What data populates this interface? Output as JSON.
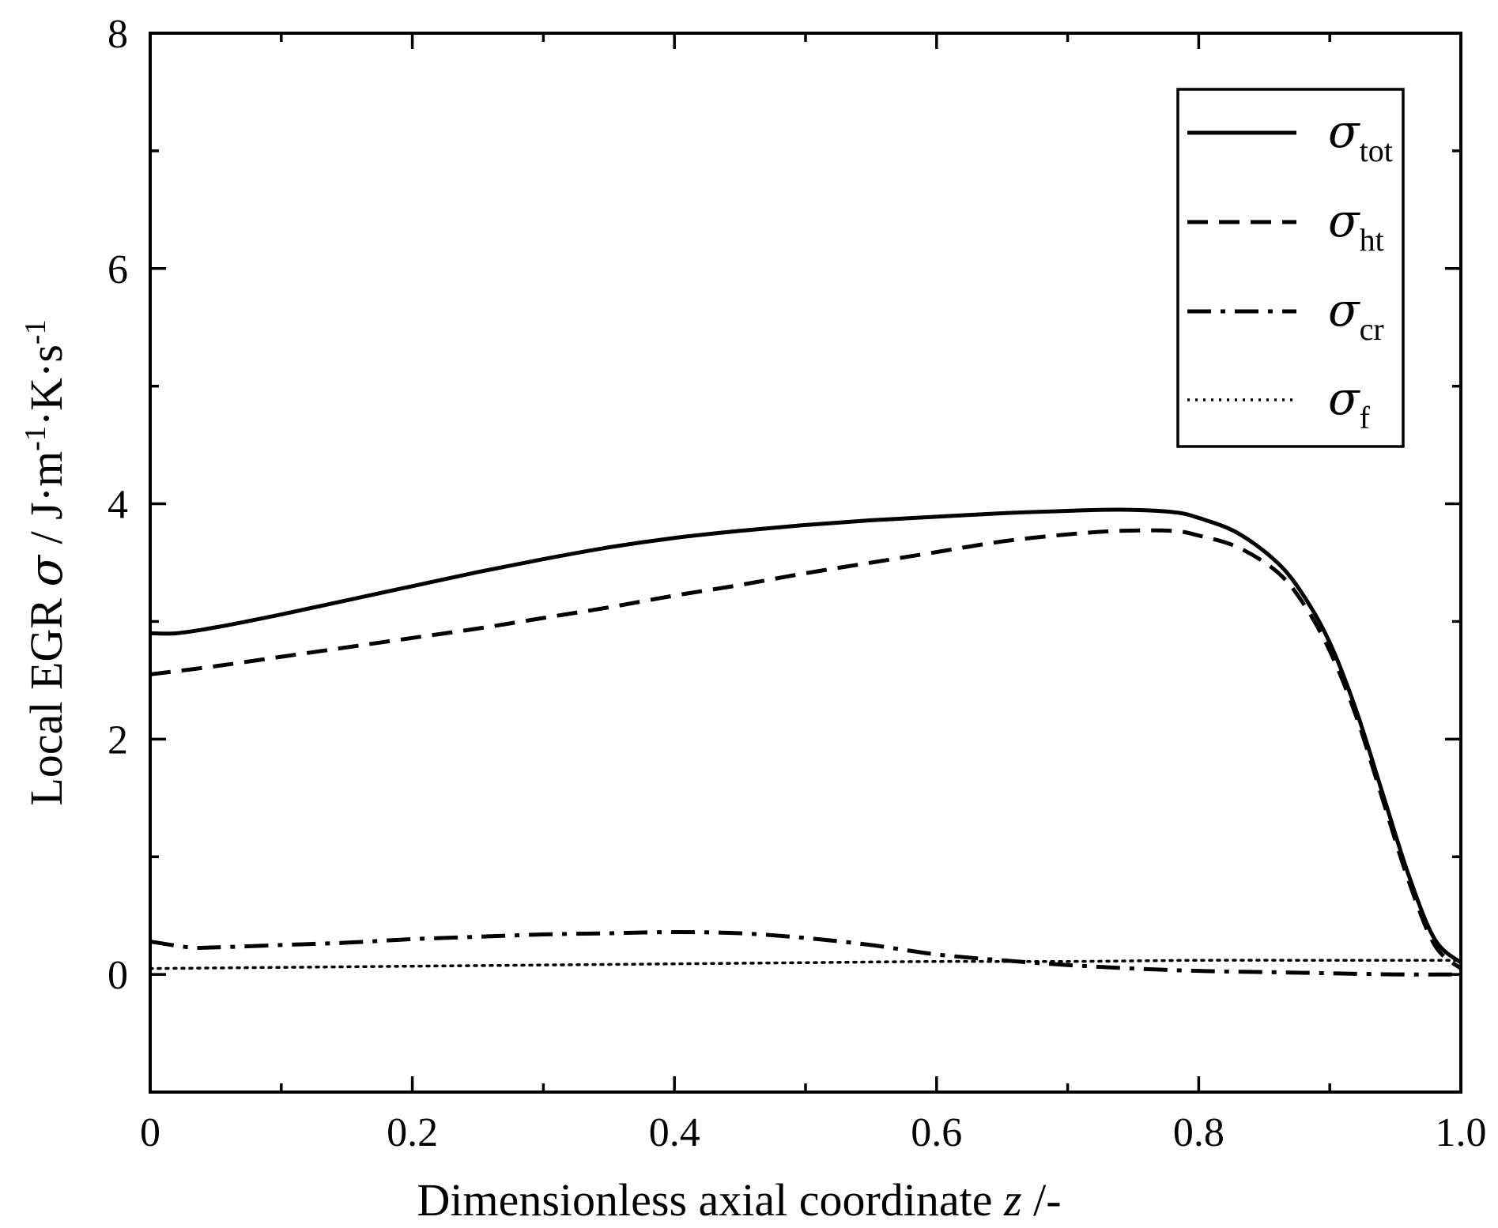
{
  "chart_data": {
    "type": "line",
    "title": "",
    "xlabel": {
      "text": "Dimensionless axial coordinate ",
      "var": "z",
      "unit": " /-"
    },
    "ylabel": {
      "prefix": "Local EGR  ",
      "symbol": "σ",
      "unit_a": " / J·m",
      "exp_a": "-1",
      "unit_b": "·K·s",
      "exp_b": "-1"
    },
    "xlim": [
      0,
      1.0
    ],
    "ylim": [
      -1,
      8
    ],
    "x_tick_labels": [
      "0",
      "0.2",
      "0.4",
      "0.6",
      "0.8",
      "1.0"
    ],
    "x_tick_values": [
      0,
      0.2,
      0.4,
      0.6,
      0.8,
      1.0
    ],
    "y_tick_labels": [
      "0",
      "2",
      "4",
      "6",
      "8"
    ],
    "y_tick_values": [
      0,
      2,
      4,
      6,
      8
    ],
    "legend_position": "top-right",
    "series": [
      {
        "name": "σ_tot",
        "symbol": "σ",
        "sub": "tot",
        "style": "solid",
        "x": [
          0,
          0.02,
          0.05,
          0.1,
          0.15,
          0.2,
          0.25,
          0.3,
          0.35,
          0.4,
          0.45,
          0.5,
          0.55,
          0.6,
          0.65,
          0.7,
          0.74,
          0.78,
          0.8,
          0.83,
          0.86,
          0.88,
          0.9,
          0.92,
          0.94,
          0.96,
          0.98,
          1.0
        ],
        "values": [
          2.9,
          2.9,
          2.95,
          3.06,
          3.18,
          3.3,
          3.42,
          3.53,
          3.63,
          3.71,
          3.77,
          3.82,
          3.86,
          3.89,
          3.92,
          3.94,
          3.95,
          3.93,
          3.88,
          3.75,
          3.5,
          3.22,
          2.82,
          2.25,
          1.55,
          0.85,
          0.3,
          0.1
        ]
      },
      {
        "name": "σ_ht",
        "symbol": "σ",
        "sub": "ht",
        "style": "dashed",
        "x": [
          0,
          0.05,
          0.1,
          0.15,
          0.2,
          0.25,
          0.3,
          0.35,
          0.4,
          0.45,
          0.5,
          0.55,
          0.6,
          0.65,
          0.7,
          0.74,
          0.78,
          0.8,
          0.83,
          0.86,
          0.88,
          0.9,
          0.92,
          0.94,
          0.96,
          0.98,
          1.0
        ],
        "values": [
          2.55,
          2.62,
          2.7,
          2.78,
          2.86,
          2.94,
          3.03,
          3.12,
          3.22,
          3.31,
          3.41,
          3.5,
          3.59,
          3.68,
          3.74,
          3.77,
          3.77,
          3.73,
          3.63,
          3.42,
          3.15,
          2.75,
          2.2,
          1.5,
          0.8,
          0.25,
          0.05
        ]
      },
      {
        "name": "σ_cr",
        "symbol": "σ",
        "sub": "cr",
        "style": "dashdot",
        "x": [
          0,
          0.03,
          0.05,
          0.1,
          0.15,
          0.2,
          0.25,
          0.3,
          0.35,
          0.4,
          0.45,
          0.5,
          0.55,
          0.6,
          0.65,
          0.7,
          0.75,
          0.8,
          0.85,
          0.9,
          0.95,
          1.0
        ],
        "values": [
          0.28,
          0.23,
          0.23,
          0.25,
          0.27,
          0.3,
          0.32,
          0.34,
          0.35,
          0.36,
          0.35,
          0.31,
          0.25,
          0.17,
          0.12,
          0.08,
          0.05,
          0.03,
          0.02,
          0.01,
          0.0,
          0.0
        ]
      },
      {
        "name": "σ_f",
        "symbol": "σ",
        "sub": "f",
        "style": "dotted",
        "x": [
          0,
          0.1,
          0.2,
          0.3,
          0.4,
          0.5,
          0.6,
          0.7,
          0.8,
          0.9,
          1.0
        ],
        "values": [
          0.05,
          0.06,
          0.07,
          0.08,
          0.09,
          0.1,
          0.11,
          0.11,
          0.12,
          0.12,
          0.12
        ]
      }
    ]
  }
}
